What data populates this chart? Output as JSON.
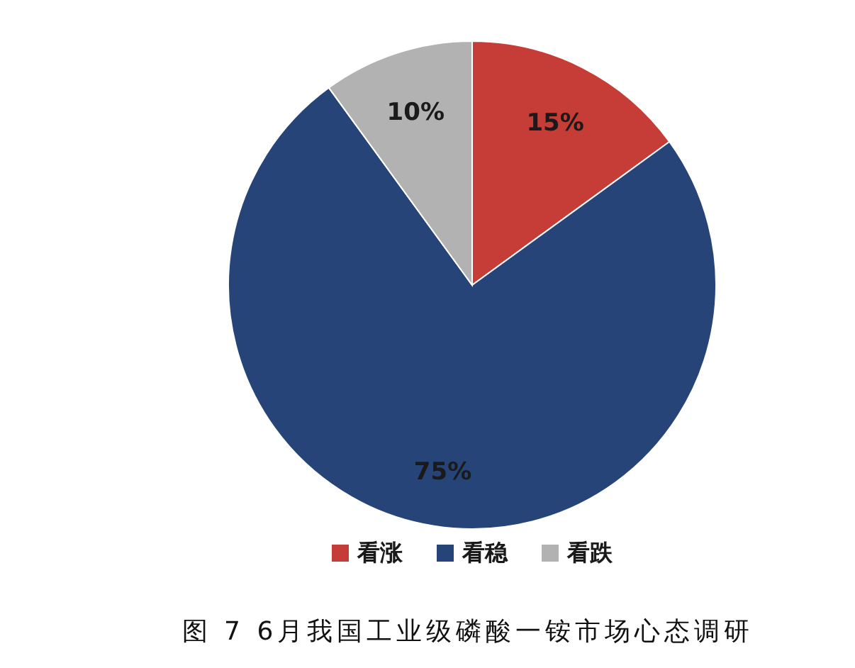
{
  "chart_data": {
    "type": "pie",
    "categories": [
      "看涨",
      "看稳",
      "看跌"
    ],
    "values": [
      15,
      75,
      10
    ],
    "colors": [
      "#c63c36",
      "#264478",
      "#b2b2b2"
    ],
    "value_labels": [
      "15%",
      "75%",
      "10%"
    ],
    "legend": "bottom",
    "annotations": [
      "图 7  6月我国工业级磷酸一铵市场心态调研"
    ]
  }
}
